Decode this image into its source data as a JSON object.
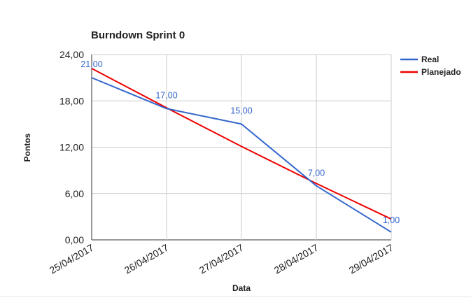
{
  "chart_data": {
    "type": "line",
    "title": "Burndown Sprint 0",
    "xlabel": "Data",
    "ylabel": "Pontos",
    "categories": [
      "25/04/2017",
      "26/04/2017",
      "27/04/2017",
      "28/04/2017",
      "29/04/2017"
    ],
    "ylim": [
      0,
      24
    ],
    "yticks": [
      "0,00",
      "6,00",
      "12,00",
      "18,00",
      "24,00"
    ],
    "grid": true,
    "legend_position": "right",
    "series": [
      {
        "name": "Real",
        "color": "#3366cc",
        "values": [
          21,
          17,
          15,
          7,
          1
        ],
        "labels": [
          "21,00",
          "17,00",
          "15,00",
          "7,00",
          "1,00"
        ]
      },
      {
        "name": "Planejado",
        "color": "#ee0000",
        "values": [
          22.2,
          17.1,
          12.1,
          7.3,
          2.7
        ]
      }
    ]
  }
}
